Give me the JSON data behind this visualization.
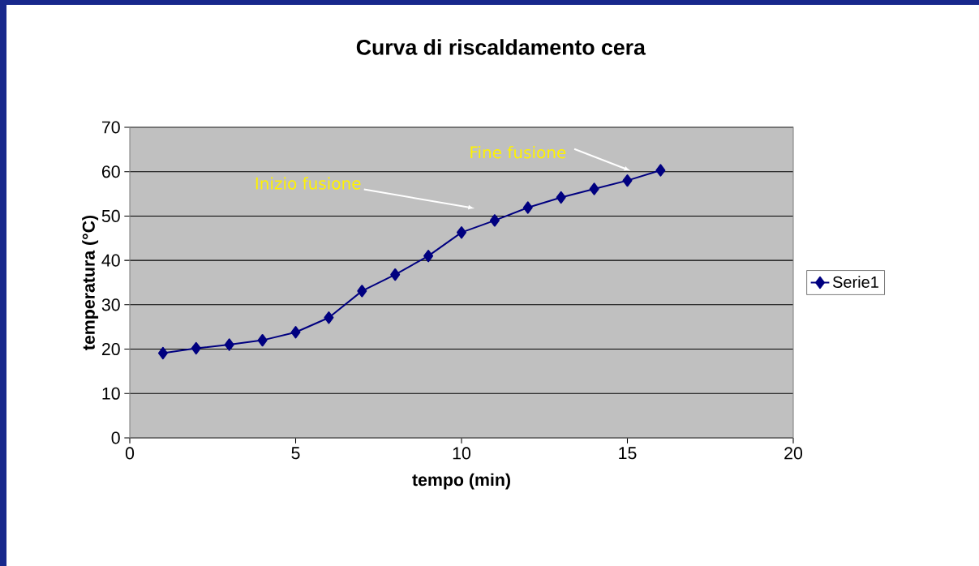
{
  "chart_data": {
    "type": "line",
    "title": "Curva di riscaldamento cera",
    "xlabel": "tempo (min)",
    "ylabel": "temperatura (°C)",
    "x": [
      1,
      2,
      3,
      4,
      5,
      6,
      7,
      8,
      9,
      10,
      11,
      12,
      13,
      14,
      15,
      16
    ],
    "series": [
      {
        "name": "Serie1",
        "color": "#000080",
        "values": [
          19.1,
          20.2,
          21.0,
          22.0,
          23.8,
          27.1,
          33.1,
          36.8,
          41.0,
          46.3,
          49.0,
          51.9,
          54.2,
          56.1,
          58.0,
          60.3
        ]
      }
    ],
    "xlim": [
      0,
      20
    ],
    "xticks": [
      0,
      5,
      10,
      15,
      20
    ],
    "ylim": [
      0,
      70
    ],
    "yticks": [
      0,
      10,
      20,
      30,
      40,
      50,
      60,
      70
    ],
    "grid": "y",
    "legend": "right",
    "marker": "diamond",
    "line_style": "solid",
    "annotations": [
      "Inizio fusione",
      "Fine fusione"
    ]
  }
}
